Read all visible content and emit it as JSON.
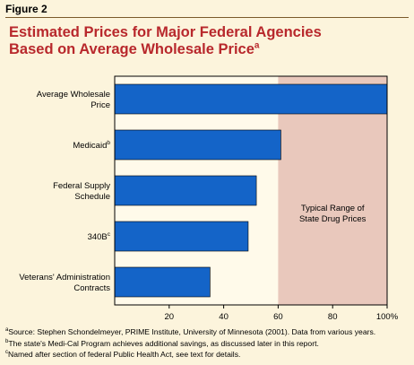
{
  "figure_label": "Figure 2",
  "title": {
    "line1": "Estimated Prices for Major Federal Agencies",
    "line2": "Based on Average Wholesale Price",
    "line2_sup": "a"
  },
  "annotation": {
    "line1": "Typical Range of",
    "line2": "State Drug Prices",
    "range": [
      60,
      100
    ]
  },
  "footnotes": [
    {
      "marker": "a",
      "text": "Source: Stephen Schondelmeyer, PRIME Institute, University of Minnesota (2001). Data from various years."
    },
    {
      "marker": "b",
      "text": "The state's Medi-Cal Program achieves additional savings, as discussed later in this report."
    },
    {
      "marker": "c",
      "text": "Named after section of federal Public Health Act, see text for details."
    }
  ],
  "colors": {
    "bar": "#1464c8",
    "shade": "#e9c8bc",
    "title": "#b8282c",
    "background": "#fcf4dc"
  },
  "chart_data": {
    "type": "bar",
    "orientation": "horizontal",
    "categories": [
      {
        "lines": [
          "Average Wholesale",
          "Price"
        ],
        "sup": ""
      },
      {
        "lines": [
          "Medicaid"
        ],
        "sup": "b"
      },
      {
        "lines": [
          "Federal Supply",
          "Schedule"
        ],
        "sup": ""
      },
      {
        "lines": [
          "340B"
        ],
        "sup": "c"
      },
      {
        "lines": [
          "Veterans' Administration",
          "Contracts"
        ],
        "sup": ""
      }
    ],
    "values": [
      100,
      61,
      52,
      49,
      35
    ],
    "xlim": [
      0,
      100
    ],
    "xticks": [
      20,
      40,
      60,
      80,
      100
    ],
    "xtick_labels": [
      "20",
      "40",
      "60",
      "80",
      "100%"
    ],
    "grid": false,
    "legend": "none"
  }
}
